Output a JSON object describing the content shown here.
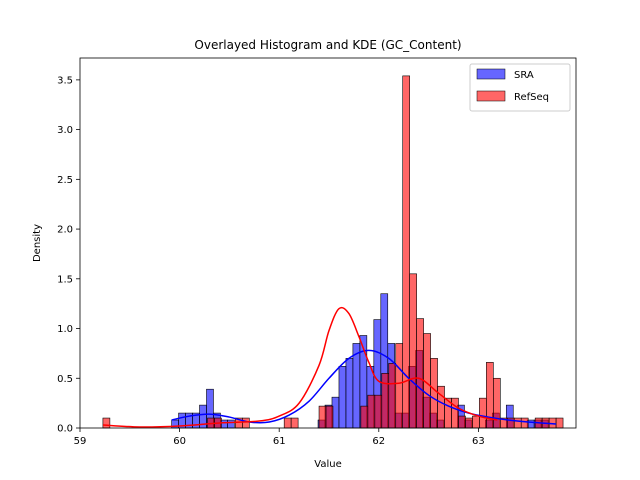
{
  "chart_data": {
    "type": "histogram",
    "title": "Overlayed Histogram and KDE (GC_Content)",
    "xlabel": "Value",
    "ylabel": "Density",
    "xlim": [
      59.0,
      63.98
    ],
    "ylim": [
      0.0,
      3.72
    ],
    "x_ticks": [
      59,
      60,
      61,
      62,
      63
    ],
    "y_ticks": [
      0.0,
      0.5,
      1.0,
      1.5,
      2.0,
      2.5,
      3.0,
      3.5
    ],
    "x_tick_labels": [
      "59",
      "60",
      "61",
      "62",
      "63"
    ],
    "y_tick_labels": [
      "0.0",
      "0.5",
      "1.0",
      "1.5",
      "2.0",
      "2.5",
      "3.0",
      "3.5"
    ],
    "legend_position": "top-right",
    "series": [
      {
        "name": "SRA",
        "color": "#0000ff",
        "bin_start": 59.92,
        "bin_width": 0.07,
        "density": [
          0.08,
          0.15,
          0.15,
          0.15,
          0.23,
          0.39,
          0.15,
          0.08,
          0.08,
          0.0,
          0.0,
          0.0,
          0.0,
          0.0,
          0.0,
          0.0,
          0.0,
          0.0,
          0.0,
          0.0,
          0.0,
          0.08,
          0.23,
          0.31,
          0.62,
          0.7,
          0.85,
          0.93,
          0.62,
          1.09,
          1.35,
          0.85,
          0.15,
          0.15,
          0.62,
          0.78,
          0.31,
          0.15,
          0.08,
          0.0,
          0.0,
          0.23,
          0.08,
          0.0,
          0.0,
          0.08,
          0.15,
          0.0,
          0.23,
          0.0,
          0.0,
          0.08,
          0.08,
          0.08
        ],
        "kde_x": [
          59.92,
          60.1,
          60.3,
          60.5,
          60.7,
          60.9,
          61.1,
          61.3,
          61.5,
          61.7,
          61.9,
          62.1,
          62.3,
          62.5,
          62.7,
          62.9,
          63.1,
          63.3,
          63.5,
          63.78
        ],
        "kde_y": [
          0.08,
          0.12,
          0.14,
          0.11,
          0.06,
          0.06,
          0.13,
          0.27,
          0.5,
          0.7,
          0.78,
          0.7,
          0.5,
          0.33,
          0.22,
          0.15,
          0.11,
          0.08,
          0.06,
          0.04
        ]
      },
      {
        "name": "RefSeq",
        "color": "#ff0000",
        "bin_start": 59.23,
        "bin_width": 0.07,
        "density": [
          0.1,
          0.0,
          0.0,
          0.0,
          0.0,
          0.0,
          0.0,
          0.0,
          0.0,
          0.0,
          0.0,
          0.0,
          0.0,
          0.0,
          0.0,
          0.1,
          0.1,
          0.0,
          0.0,
          0.1,
          0.1,
          0.0,
          0.0,
          0.0,
          0.0,
          0.0,
          0.1,
          0.1,
          0.0,
          0.0,
          0.0,
          0.22,
          0.22,
          0.0,
          0.0,
          0.0,
          0.0,
          0.22,
          0.33,
          0.33,
          0.55,
          0.65,
          0.85,
          3.54,
          1.55,
          1.1,
          0.95,
          0.7,
          0.42,
          0.3,
          0.3,
          0.12,
          0.1,
          0.12,
          0.3,
          0.66,
          0.5,
          0.1,
          0.1,
          0.1,
          0.1,
          0.0,
          0.1,
          0.1,
          0.1,
          0.1
        ],
        "kde_x": [
          59.23,
          59.6,
          60.0,
          60.4,
          60.8,
          61.0,
          61.2,
          61.4,
          61.5,
          61.6,
          61.7,
          61.8,
          61.9,
          62.0,
          62.2,
          62.4,
          62.6,
          62.8,
          63.0,
          63.19
        ],
        "kde_y": [
          0.03,
          0.01,
          0.02,
          0.05,
          0.07,
          0.12,
          0.25,
          0.63,
          0.98,
          1.2,
          1.15,
          0.92,
          0.66,
          0.47,
          0.45,
          0.5,
          0.35,
          0.2,
          0.12,
          0.08
        ]
      }
    ]
  }
}
